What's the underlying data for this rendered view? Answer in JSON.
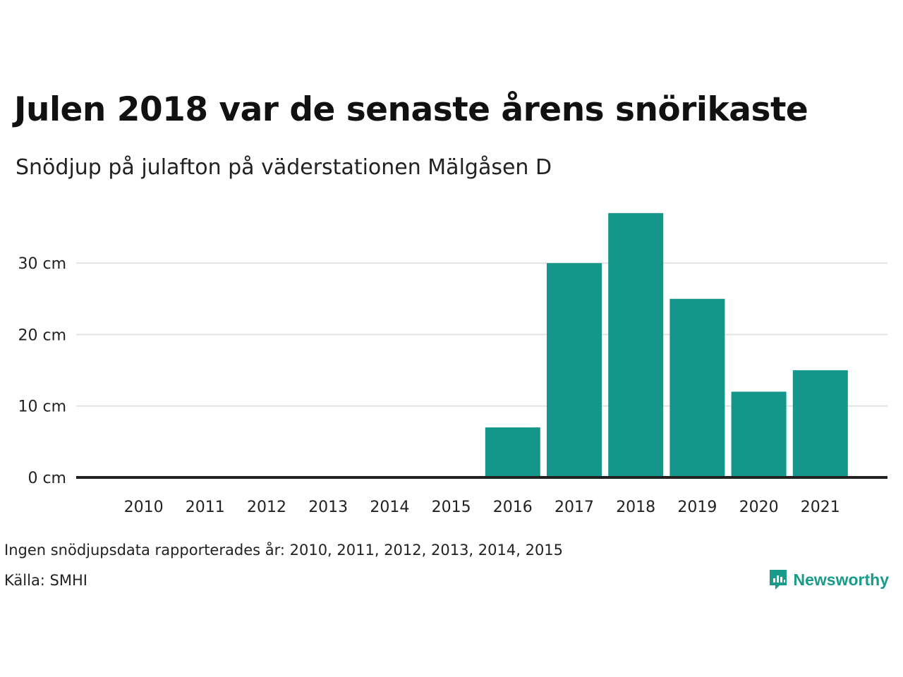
{
  "title": "Julen 2018 var de senaste årens snörikaste",
  "subtitle": "Snödjup på julafton på väderstationen Mälgåsen D",
  "chart_data": {
    "type": "bar",
    "categories": [
      "2010",
      "2011",
      "2012",
      "2013",
      "2014",
      "2015",
      "2016",
      "2017",
      "2018",
      "2019",
      "2020",
      "2021"
    ],
    "values": [
      null,
      null,
      null,
      null,
      null,
      null,
      7,
      30,
      37,
      25,
      12,
      15
    ],
    "ylim": [
      0,
      40
    ],
    "yticks": [
      0,
      10,
      20,
      30
    ],
    "ytick_labels": [
      "0 cm",
      "10 cm",
      "20 cm",
      "30 cm"
    ],
    "unit": "cm",
    "grid": true,
    "bar_color": "#14978a"
  },
  "footer": {
    "note": "Ingen snödjupsdata rapporterades år: 2010, 2011, 2012, 2013, 2014, 2015",
    "source": "Källa: SMHI",
    "logo_text": "Newsworthy",
    "logo_color": "#1a9a8a"
  }
}
